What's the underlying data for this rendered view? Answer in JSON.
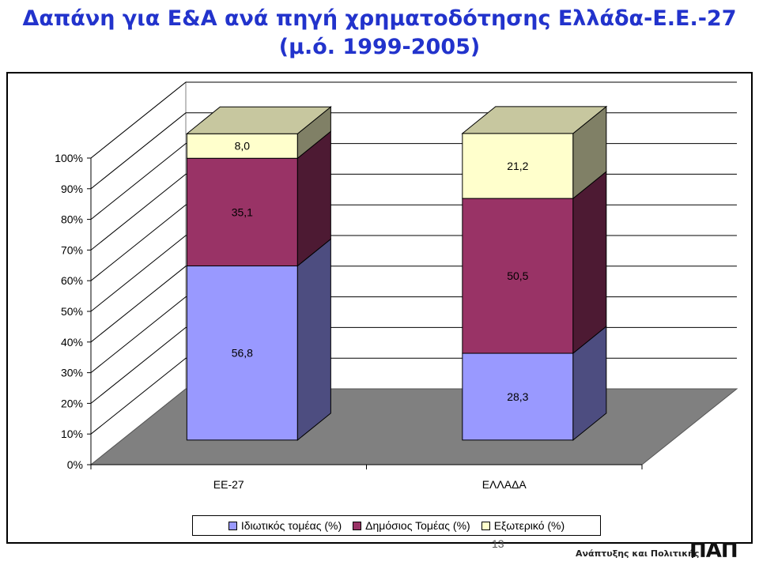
{
  "slide": {
    "title_line1": "Δαπάνη για Ε&Α ανά πηγή χρηματοδότησης Ελλάδα-Ε.Ε.-27",
    "title_line2": "(μ.ό. 1999-2005)",
    "page_number": "13",
    "footer_text": "Ανάπτυξης και Πολιτικής",
    "footer_logo": "ΠΑΠ"
  },
  "chart_data": {
    "type": "bar",
    "stacked": true,
    "three_d": true,
    "title": "",
    "xlabel": "",
    "ylabel": "",
    "ylim": [
      0,
      100
    ],
    "y_ticks": [
      "0%",
      "10%",
      "20%",
      "30%",
      "40%",
      "50%",
      "60%",
      "70%",
      "80%",
      "90%",
      "100%"
    ],
    "categories": [
      "ΕΕ-27",
      "ΕΛΛΑΔΑ"
    ],
    "series": [
      {
        "name": "Ιδιωτικός τομέας (%)",
        "values": [
          56.8,
          28.3
        ],
        "labels": [
          "56,8",
          "28,3"
        ],
        "color": "#9999ff"
      },
      {
        "name": "Δημόσιος Τομέας (%)",
        "values": [
          35.1,
          50.5
        ],
        "labels": [
          "35,1",
          "50,5"
        ],
        "color": "#993366"
      },
      {
        "name": "Εξωτερικό (%)",
        "values": [
          8.0,
          21.2
        ],
        "labels": [
          "8,0",
          "21,2"
        ],
        "color": "#ffffcc"
      }
    ],
    "grid": true,
    "legend_position": "bottom"
  }
}
